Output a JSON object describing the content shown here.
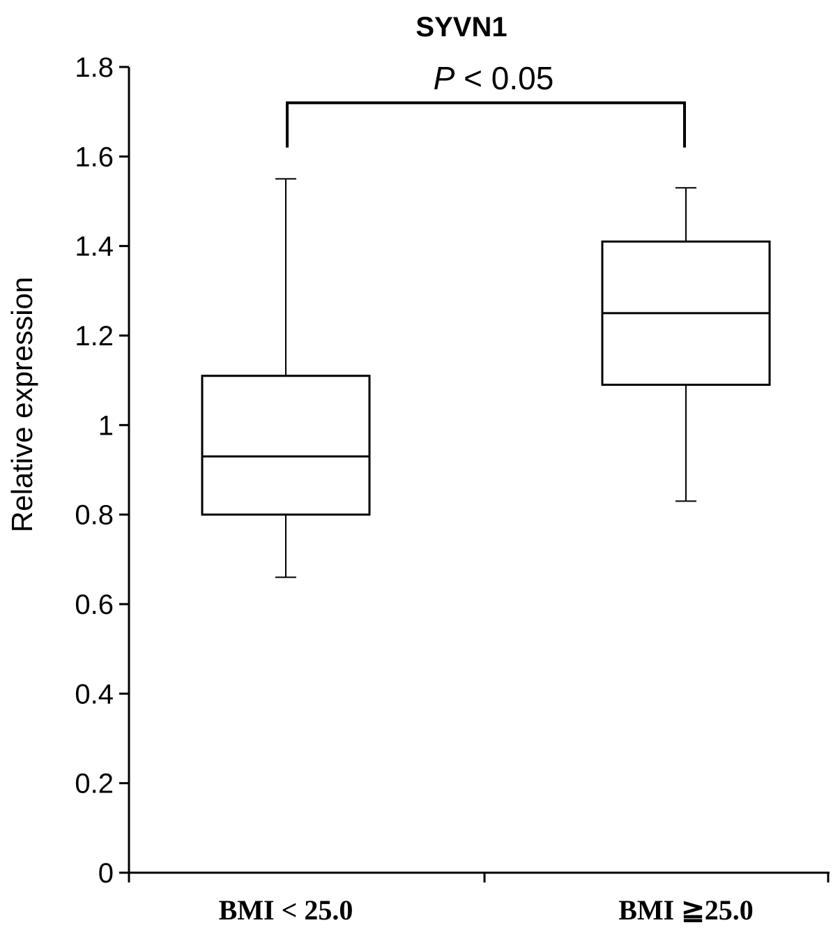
{
  "chart_data": {
    "type": "box",
    "title": "SYVN1",
    "ylabel": "Relative expression",
    "xlabel": "",
    "ylim": [
      0,
      1.8
    ],
    "yticks": [
      "0",
      "0.2",
      "0.4",
      "0.6",
      "0.8",
      "1",
      "1.2",
      "1.4",
      "1.6",
      "1.8"
    ],
    "categories": [
      "BMI < 25.0",
      "BMI ≧25.0"
    ],
    "boxes": [
      {
        "category": "BMI < 25.0",
        "min": 0.66,
        "q1": 0.8,
        "median": 0.93,
        "q3": 1.11,
        "max": 1.55
      },
      {
        "category": "BMI ≧25.0",
        "min": 0.83,
        "q1": 1.09,
        "median": 1.25,
        "q3": 1.41,
        "max": 1.53
      }
    ],
    "significance": {
      "p_symbol": "P",
      "p_text": " < 0.05",
      "bracket_from": "BMI < 25.0",
      "bracket_to": "BMI ≧25.0",
      "bracket_level": 1.72,
      "leg_bottom_level": 1.62
    },
    "grid": false,
    "legend": "none",
    "colors": {
      "line": "#000000",
      "box_fill": "#ffffff"
    }
  }
}
